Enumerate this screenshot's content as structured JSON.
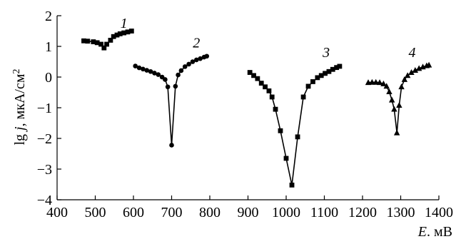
{
  "chart_data": {
    "type": "line",
    "title": "",
    "xlabel": "E, мВ",
    "ylabel": "lg j, мкА/см²",
    "ylabel_parts": {
      "var": "lg ",
      "sym": "j",
      "unit": ", мкА/см",
      "sup": "2"
    },
    "xlabel_parts": {
      "sym": "E",
      "unit": ". мВ"
    },
    "xlim": [
      400,
      1400
    ],
    "ylim": [
      -4,
      2
    ],
    "xticks": [
      400,
      500,
      600,
      700,
      800,
      900,
      1000,
      1100,
      1200,
      1300,
      1400
    ],
    "yticks": [
      2,
      1,
      0,
      -1,
      -2,
      -3,
      -4
    ],
    "ytick_labels": [
      "2",
      "1",
      "0",
      "−1",
      "−2",
      "−3",
      "−4"
    ],
    "grid": false,
    "legend": "none",
    "series": [
      {
        "name": "1",
        "marker": "square",
        "x": [
          470,
          480,
          495,
          505,
          515,
          523,
          530,
          540,
          548,
          557,
          565,
          575,
          585,
          595
        ],
        "y": [
          1.18,
          1.17,
          1.15,
          1.12,
          1.07,
          0.95,
          1.07,
          1.2,
          1.32,
          1.37,
          1.41,
          1.44,
          1.47,
          1.5
        ]
      },
      {
        "name": "2",
        "marker": "circle",
        "x": [
          605,
          615,
          625,
          635,
          645,
          655,
          665,
          675,
          683,
          690,
          700,
          710,
          717,
          725,
          735,
          745,
          755,
          765,
          775,
          785,
          792
        ],
        "y": [
          0.36,
          0.3,
          0.26,
          0.22,
          0.18,
          0.13,
          0.08,
          0.0,
          -0.08,
          -0.32,
          -2.22,
          -0.3,
          0.07,
          0.21,
          0.34,
          0.42,
          0.5,
          0.56,
          0.6,
          0.65,
          0.68
        ]
      },
      {
        "name": "3",
        "marker": "square",
        "x": [
          905,
          915,
          925,
          935,
          945,
          955,
          963,
          972,
          985,
          1000,
          1015,
          1030,
          1045,
          1058,
          1070,
          1082,
          1092,
          1102,
          1112,
          1122,
          1132,
          1140
        ],
        "y": [
          0.15,
          0.05,
          -0.05,
          -0.2,
          -0.32,
          -0.45,
          -0.65,
          -1.05,
          -1.75,
          -2.65,
          -3.52,
          -1.95,
          -0.65,
          -0.3,
          -0.15,
          -0.02,
          0.05,
          0.12,
          0.18,
          0.25,
          0.31,
          0.35
        ]
      },
      {
        "name": "4",
        "marker": "triangle",
        "x": [
          1215,
          1225,
          1235,
          1245,
          1255,
          1263,
          1270,
          1277,
          1283,
          1290,
          1296,
          1302,
          1310,
          1318,
          1328,
          1338,
          1348,
          1358,
          1368,
          1374
        ],
        "y": [
          -0.18,
          -0.17,
          -0.17,
          -0.18,
          -0.22,
          -0.3,
          -0.48,
          -0.75,
          -1.05,
          -1.82,
          -0.92,
          -0.32,
          -0.08,
          0.05,
          0.15,
          0.22,
          0.28,
          0.33,
          0.37,
          0.39
        ]
      }
    ],
    "series_labels": [
      {
        "text": "1",
        "x": 575,
        "y": 1.6
      },
      {
        "text": "2",
        "x": 765,
        "y": 0.97
      },
      {
        "text": "3",
        "x": 1105,
        "y": 0.65
      },
      {
        "text": "4",
        "x": 1330,
        "y": 0.65
      }
    ]
  }
}
